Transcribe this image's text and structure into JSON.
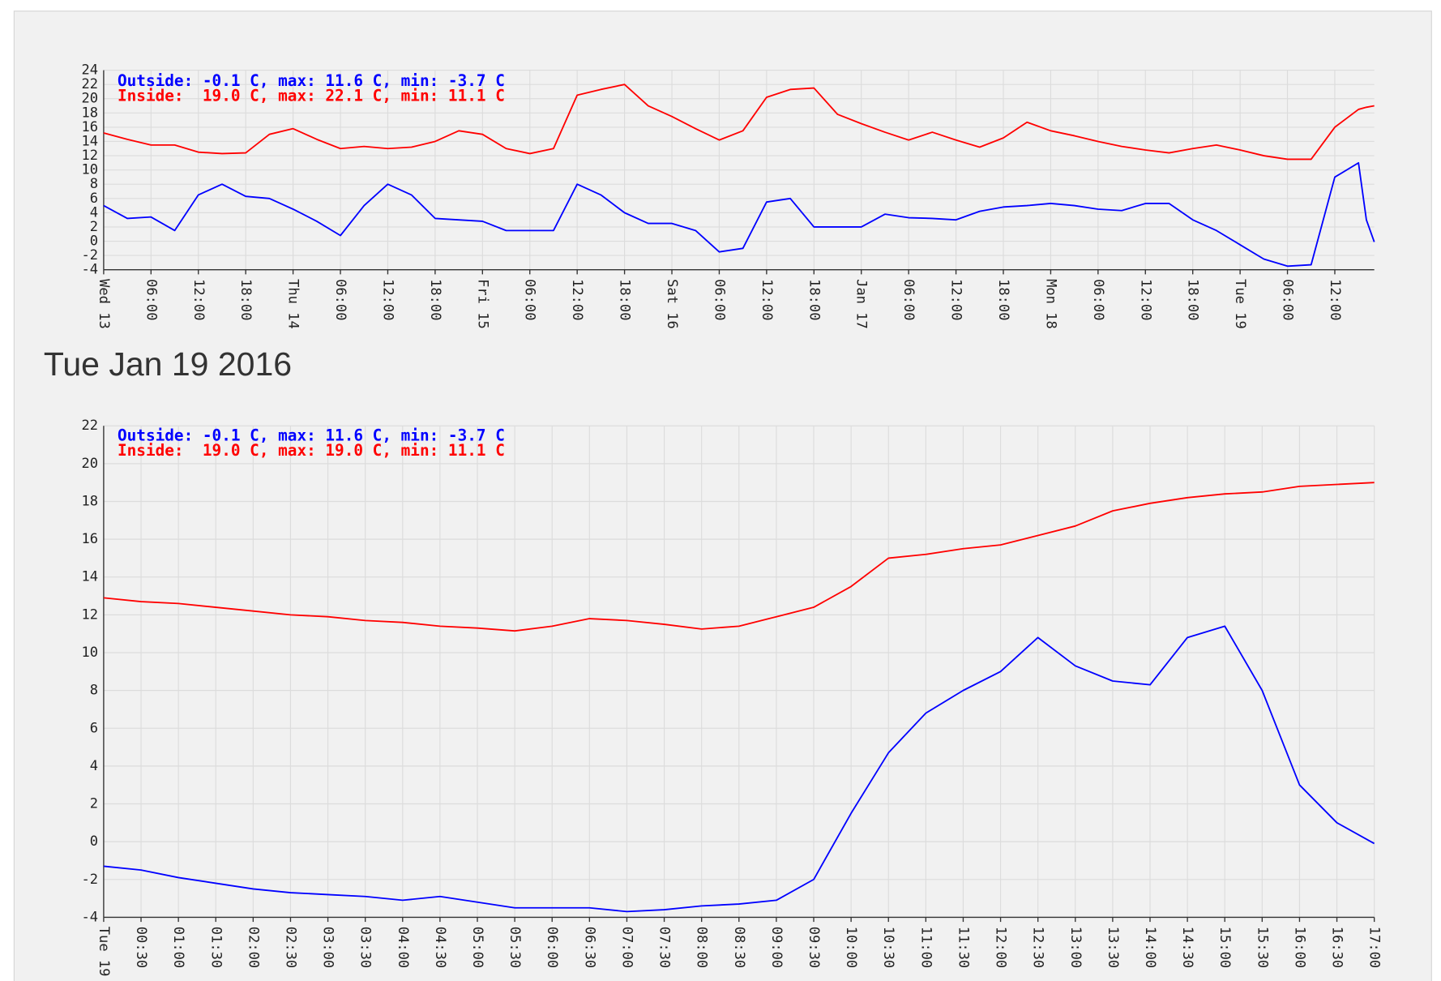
{
  "heading": "Tue Jan 19 2016",
  "chart_data": [
    {
      "type": "line",
      "grid": true,
      "x": [
        0,
        3,
        6,
        9,
        12,
        15,
        18,
        21,
        24,
        27,
        30,
        33,
        36,
        39,
        42,
        45,
        48,
        51,
        54,
        57,
        60,
        63,
        66,
        69,
        72,
        75,
        78,
        81,
        84,
        87,
        90,
        93,
        96,
        99,
        102,
        105,
        108,
        111,
        114,
        117,
        120,
        123,
        126,
        129,
        132,
        135,
        138,
        141,
        144,
        147,
        150,
        153,
        156,
        159,
        160,
        161
      ],
      "xlim": [
        0,
        161
      ],
      "xticks": [
        {
          "value": 0,
          "label": "Wed 13"
        },
        {
          "value": 6,
          "label": "06:00"
        },
        {
          "value": 12,
          "label": "12:00"
        },
        {
          "value": 18,
          "label": "18:00"
        },
        {
          "value": 24,
          "label": "Thu 14"
        },
        {
          "value": 30,
          "label": "06:00"
        },
        {
          "value": 36,
          "label": "12:00"
        },
        {
          "value": 42,
          "label": "18:00"
        },
        {
          "value": 48,
          "label": "Fri 15"
        },
        {
          "value": 54,
          "label": "06:00"
        },
        {
          "value": 60,
          "label": "12:00"
        },
        {
          "value": 66,
          "label": "18:00"
        },
        {
          "value": 72,
          "label": "Sat 16"
        },
        {
          "value": 78,
          "label": "06:00"
        },
        {
          "value": 84,
          "label": "12:00"
        },
        {
          "value": 90,
          "label": "18:00"
        },
        {
          "value": 96,
          "label": "Jan 17"
        },
        {
          "value": 102,
          "label": "06:00"
        },
        {
          "value": 108,
          "label": "12:00"
        },
        {
          "value": 114,
          "label": "18:00"
        },
        {
          "value": 120,
          "label": "Mon 18"
        },
        {
          "value": 126,
          "label": "06:00"
        },
        {
          "value": 132,
          "label": "12:00"
        },
        {
          "value": 138,
          "label": "18:00"
        },
        {
          "value": 144,
          "label": "Tue 19"
        },
        {
          "value": 150,
          "label": "06:00"
        },
        {
          "value": 156,
          "label": "12:00"
        }
      ],
      "ylim": [
        -4,
        24
      ],
      "yticks": [
        -4,
        -2,
        0,
        2,
        4,
        6,
        8,
        10,
        12,
        14,
        16,
        18,
        20,
        22,
        24
      ],
      "series": [
        {
          "name": "Outside: -0.1 C, max: 11.6 C, min: -3.7 C",
          "color": "#0000ff",
          "values": [
            5,
            3.2,
            3.4,
            1.5,
            6.5,
            8,
            6.3,
            6,
            4.5,
            2.8,
            0.8,
            5,
            8,
            6.5,
            3.2,
            3,
            2.8,
            1.5,
            1.5,
            1.5,
            8,
            6.5,
            4,
            2.5,
            2.5,
            1.5,
            -1.5,
            -1,
            5.5,
            6,
            2,
            2,
            2,
            3.8,
            3.3,
            3.2,
            3,
            4.2,
            4.8,
            5,
            5.3,
            5,
            4.5,
            4.3,
            5.3,
            5.3,
            3,
            1.5,
            -0.5,
            -2.5,
            -3.5,
            -3.3,
            9,
            11,
            3,
            -0.1
          ]
        },
        {
          "name": "Inside:  19.0 C, max: 22.1 C, min: 11.1 C",
          "color": "#ff0000",
          "values": [
            15.2,
            14.3,
            13.5,
            13.5,
            12.5,
            12.3,
            12.4,
            15,
            15.8,
            14.3,
            13,
            13.3,
            13,
            13.2,
            14,
            15.5,
            15,
            13,
            12.3,
            13,
            20.5,
            21.3,
            22,
            19,
            17.5,
            15.8,
            14.2,
            15.5,
            20.2,
            21.3,
            21.5,
            17.8,
            16.5,
            15.3,
            14.2,
            15.3,
            14.2,
            13.2,
            14.5,
            16.7,
            15.5,
            14.8,
            14,
            13.3,
            12.8,
            12.4,
            13,
            13.5,
            12.8,
            12,
            11.5,
            11.5,
            16,
            18.5,
            18.8,
            19
          ]
        }
      ]
    },
    {
      "type": "line",
      "grid": true,
      "x": [
        0,
        0.5,
        1,
        1.5,
        2,
        2.5,
        3,
        3.5,
        4,
        4.5,
        5,
        5.5,
        6,
        6.5,
        7,
        7.5,
        8,
        8.5,
        9,
        9.5,
        10,
        10.5,
        11,
        11.5,
        12,
        12.5,
        13,
        13.5,
        14,
        14.5,
        15,
        15.5,
        16,
        16.5,
        17
      ],
      "xlim": [
        0,
        17
      ],
      "xticks": [
        {
          "value": 0,
          "label": "Tue 19"
        },
        {
          "value": 0.5,
          "label": "00:30"
        },
        {
          "value": 1,
          "label": "01:00"
        },
        {
          "value": 1.5,
          "label": "01:30"
        },
        {
          "value": 2,
          "label": "02:00"
        },
        {
          "value": 2.5,
          "label": "02:30"
        },
        {
          "value": 3,
          "label": "03:00"
        },
        {
          "value": 3.5,
          "label": "03:30"
        },
        {
          "value": 4,
          "label": "04:00"
        },
        {
          "value": 4.5,
          "label": "04:30"
        },
        {
          "value": 5,
          "label": "05:00"
        },
        {
          "value": 5.5,
          "label": "05:30"
        },
        {
          "value": 6,
          "label": "06:00"
        },
        {
          "value": 6.5,
          "label": "06:30"
        },
        {
          "value": 7,
          "label": "07:00"
        },
        {
          "value": 7.5,
          "label": "07:30"
        },
        {
          "value": 8,
          "label": "08:00"
        },
        {
          "value": 8.5,
          "label": "08:30"
        },
        {
          "value": 9,
          "label": "09:00"
        },
        {
          "value": 9.5,
          "label": "09:30"
        },
        {
          "value": 10,
          "label": "10:00"
        },
        {
          "value": 10.5,
          "label": "10:30"
        },
        {
          "value": 11,
          "label": "11:00"
        },
        {
          "value": 11.5,
          "label": "11:30"
        },
        {
          "value": 12,
          "label": "12:00"
        },
        {
          "value": 12.5,
          "label": "12:30"
        },
        {
          "value": 13,
          "label": "13:00"
        },
        {
          "value": 13.5,
          "label": "13:30"
        },
        {
          "value": 14,
          "label": "14:00"
        },
        {
          "value": 14.5,
          "label": "14:30"
        },
        {
          "value": 15,
          "label": "15:00"
        },
        {
          "value": 15.5,
          "label": "15:30"
        },
        {
          "value": 16,
          "label": "16:00"
        },
        {
          "value": 16.5,
          "label": "16:30"
        },
        {
          "value": 17,
          "label": "17:00"
        }
      ],
      "ylim": [
        -4,
        22
      ],
      "yticks": [
        -4,
        -2,
        0,
        2,
        4,
        6,
        8,
        10,
        12,
        14,
        16,
        18,
        20,
        22
      ],
      "series": [
        {
          "name": "Outside: -0.1 C, max: 11.6 C, min: -3.7 C",
          "color": "#0000ff",
          "values": [
            -1.3,
            -1.5,
            -1.9,
            -2.2,
            -2.5,
            -2.7,
            -2.8,
            -2.9,
            -3.1,
            -2.9,
            -3.2,
            -3.5,
            -3.5,
            -3.5,
            -3.7,
            -3.6,
            -3.4,
            -3.3,
            -3.1,
            -2,
            1.5,
            4.7,
            6.8,
            8,
            9,
            10.8,
            9.3,
            8.5,
            8.3,
            10.8,
            11.4,
            8,
            3,
            1,
            -0.1
          ]
        },
        {
          "name": "Inside:  19.0 C, max: 19.0 C, min: 11.1 C",
          "color": "#ff0000",
          "values": [
            12.9,
            12.7,
            12.6,
            12.4,
            12.2,
            12,
            11.9,
            11.7,
            11.6,
            11.4,
            11.3,
            11.15,
            11.4,
            11.8,
            11.7,
            11.5,
            11.25,
            11.4,
            11.9,
            12.4,
            13.5,
            15,
            15.2,
            15.5,
            15.7,
            16.2,
            16.7,
            17.5,
            17.9,
            18.2,
            18.4,
            18.5,
            18.8,
            18.9,
            19
          ]
        }
      ]
    }
  ]
}
